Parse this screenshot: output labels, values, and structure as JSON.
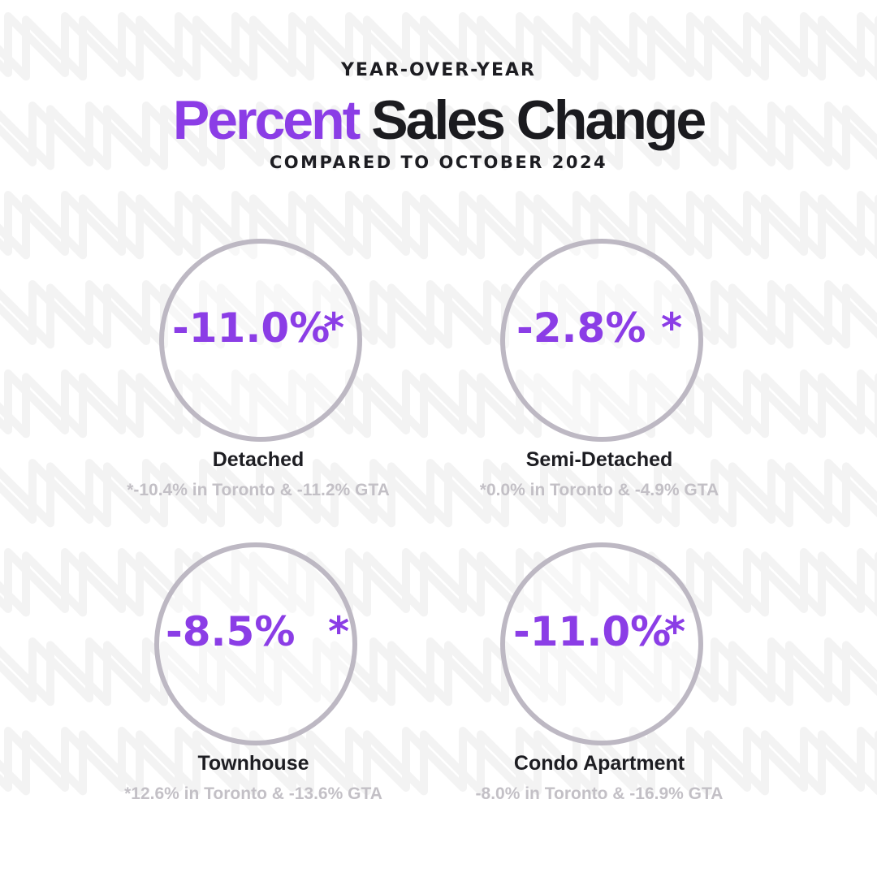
{
  "header": {
    "eyebrow": "YEAR-OVER-YEAR",
    "title_accent": "Percent",
    "title_rest": "Sales Change",
    "subtitle": "COMPARED TO OCTOBER 2024"
  },
  "colors": {
    "accent": "#8b3de6",
    "dark": "#1b1b1f",
    "ring": "#bdb8c3",
    "note": "#c3c0c6"
  },
  "cards": [
    {
      "value": "-11.0%",
      "marker": "*",
      "label": "Detached",
      "note": "*-10.4%  in Toronto & -11.2%  GTA"
    },
    {
      "value": "-2.8%",
      "marker": "*",
      "label": "Semi-Detached",
      "note": "*0.0%  in Toronto & -4.9%  GTA"
    },
    {
      "value": "-8.5%",
      "marker": "*",
      "label": "Townhouse",
      "note": "*12.6%  in Toronto & -13.6%  GTA"
    },
    {
      "value": "-11.0%",
      "marker": "*",
      "label": "Condo Apartment",
      "note": "-8.0%  in Toronto & -16.9%  GTA"
    }
  ]
}
